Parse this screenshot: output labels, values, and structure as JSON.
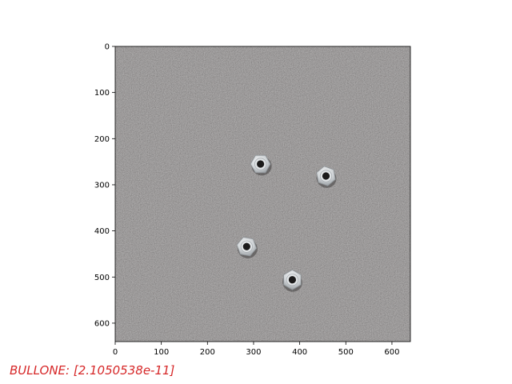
{
  "image_panel": {
    "x_ticks": [
      "0",
      "100",
      "200",
      "300",
      "400",
      "500",
      "600"
    ],
    "y_ticks": [
      "0",
      "100",
      "200",
      "300",
      "400",
      "500",
      "600"
    ],
    "x_extent": [
      0,
      640
    ],
    "y_extent": [
      0,
      640
    ],
    "background": "gray textured surface",
    "objects": [
      {
        "name": "hex-nut",
        "x": 315,
        "y": 255
      },
      {
        "name": "hex-nut",
        "x": 457,
        "y": 281
      },
      {
        "name": "hex-nut",
        "x": 285,
        "y": 434
      },
      {
        "name": "hex-nut",
        "x": 384,
        "y": 506
      }
    ]
  },
  "prediction": {
    "text": "BULLONE: [2.1050538e-11]",
    "color": "#d62728"
  }
}
